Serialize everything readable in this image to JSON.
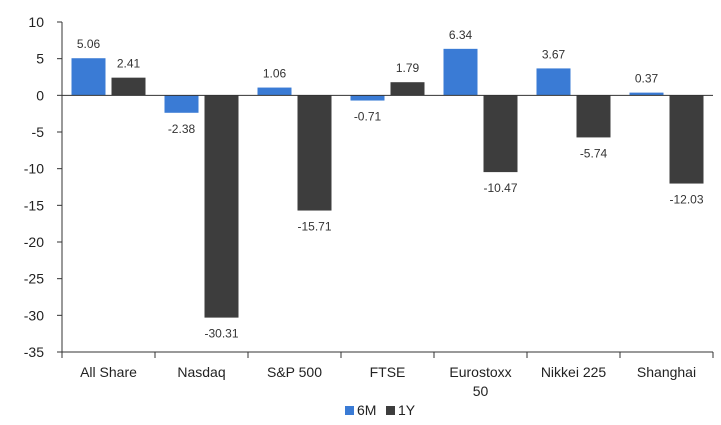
{
  "chart_data": {
    "type": "bar",
    "title": "",
    "xlabel": "",
    "ylabel": "",
    "categories": [
      [
        "All Share"
      ],
      [
        "Nasdaq"
      ],
      [
        "S&P 500"
      ],
      [
        "FTSE"
      ],
      [
        "Eurostoxx",
        "50"
      ],
      [
        "Nikkei 225"
      ],
      [
        "Shanghai"
      ]
    ],
    "series": [
      {
        "name": "6M",
        "color": "#3a7bd5",
        "values": [
          5.06,
          -2.38,
          1.06,
          -0.71,
          6.34,
          3.67,
          0.37
        ]
      },
      {
        "name": "1Y",
        "color": "#3d3d3d",
        "values": [
          2.41,
          -30.31,
          -15.71,
          1.79,
          -10.47,
          -5.74,
          -12.03
        ]
      }
    ],
    "ylim": [
      -35,
      10
    ],
    "yticks": [
      10,
      5,
      0,
      -5,
      -10,
      -15,
      -20,
      -25,
      -30,
      -35
    ],
    "grid": false,
    "legend_position": "bottom"
  }
}
